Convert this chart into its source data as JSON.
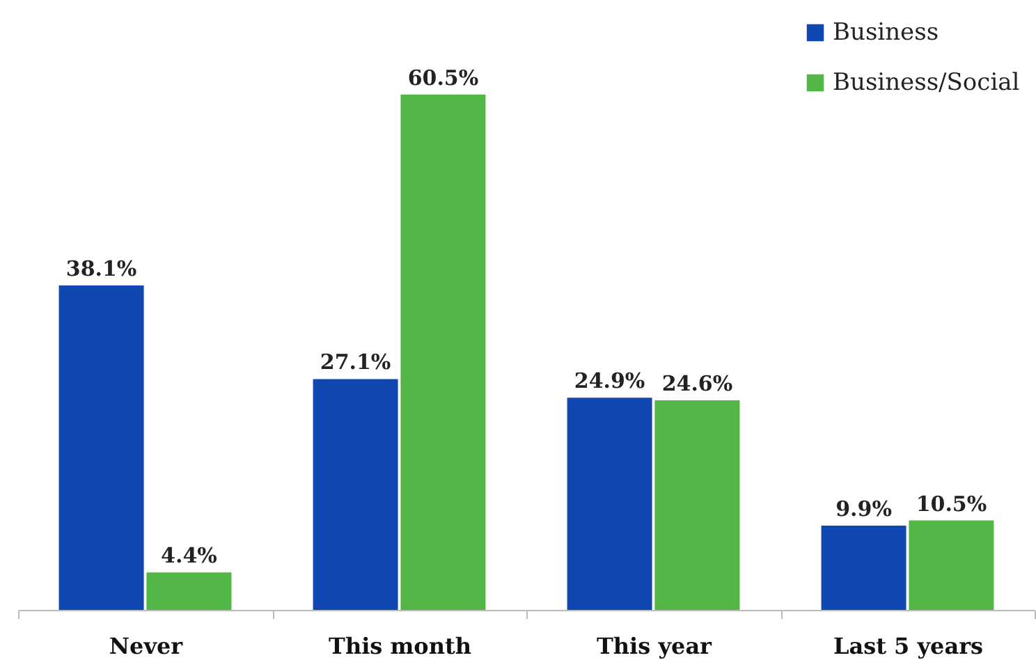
{
  "chart_data": {
    "type": "bar",
    "categories": [
      "Never",
      "This month",
      "This year",
      "Last 5 years"
    ],
    "series": [
      {
        "name": "Business",
        "color": "#1147b0",
        "values": [
          38.1,
          27.1,
          24.9,
          9.9
        ],
        "value_labels": [
          "38.1%",
          "27.1%",
          "24.9%",
          "9.9%"
        ]
      },
      {
        "name": "Business/Social",
        "color": "#52b747",
        "values": [
          4.4,
          60.5,
          24.6,
          10.5
        ],
        "value_labels": [
          "4.4%",
          "60.5%",
          "24.6%",
          "10.5%"
        ]
      }
    ],
    "legend": "top right",
    "grid": false
  }
}
